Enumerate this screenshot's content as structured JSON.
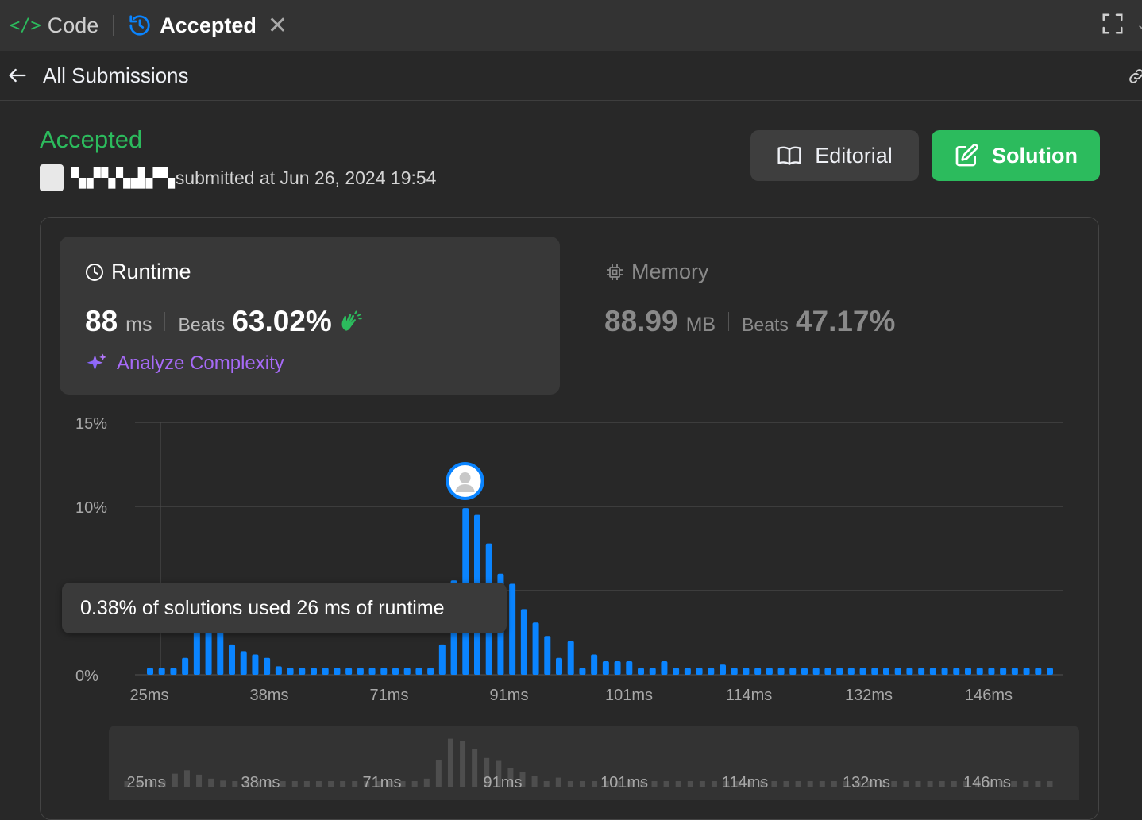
{
  "tabs": {
    "code_icon": "</>",
    "code_label": "Code",
    "accepted_label": "Accepted",
    "close_glyph": "✕"
  },
  "subheader": {
    "back_label": "All Submissions"
  },
  "submission": {
    "status": "Accepted",
    "username": "▚▞▚▚▟▞▚",
    "submitted_text": "submitted at Jun 26, 2024 19:54"
  },
  "buttons": {
    "editorial": "Editorial",
    "solution": "Solution"
  },
  "runtime": {
    "label": "Runtime",
    "value": "88",
    "unit": "ms",
    "beats_label": "Beats",
    "beats_value": "63.02%",
    "analyze_label": "Analyze Complexity"
  },
  "memory": {
    "label": "Memory",
    "value": "88.99",
    "unit": "MB",
    "beats_label": "Beats",
    "beats_value": "47.17%"
  },
  "tooltip": "0.38% of solutions used 26 ms of runtime",
  "colors": {
    "accent_green": "#2cbb5d",
    "bar_blue": "#0a84ff",
    "purple": "#a66af6",
    "bg": "#282828"
  },
  "chart_data": {
    "type": "bar",
    "ylabel": "",
    "xlabel": "",
    "yticks": [
      "15%",
      "10%",
      "0%"
    ],
    "ylim": [
      0,
      15
    ],
    "xtick_labels": [
      "25ms",
      "38ms",
      "71ms",
      "91ms",
      "101ms",
      "114ms",
      "132ms",
      "146ms"
    ],
    "highlight_bar_index": 26,
    "values": [
      0.4,
      0.4,
      0.4,
      1.0,
      2.8,
      3.5,
      2.6,
      1.8,
      1.4,
      1.2,
      1.0,
      0.5,
      0.4,
      0.4,
      0.4,
      0.4,
      0.4,
      0.4,
      0.4,
      0.4,
      0.4,
      0.4,
      0.4,
      0.4,
      0.4,
      1.8,
      5.6,
      9.9,
      9.5,
      7.8,
      6.0,
      5.4,
      3.9,
      3.1,
      2.3,
      1.0,
      2.0,
      0.4,
      1.2,
      0.8,
      0.8,
      0.8,
      0.4,
      0.4,
      0.8,
      0.4,
      0.4,
      0.4,
      0.4,
      0.6,
      0.4,
      0.4,
      0.4,
      0.4,
      0.4,
      0.4,
      0.4,
      0.4,
      0.4,
      0.4,
      0.4,
      0.4,
      0.4,
      0.4,
      0.4,
      0.4,
      0.4,
      0.4,
      0.4,
      0.4,
      0.4,
      0.4,
      0.4,
      0.4,
      0.4,
      0.4,
      0.4,
      0.4
    ]
  }
}
